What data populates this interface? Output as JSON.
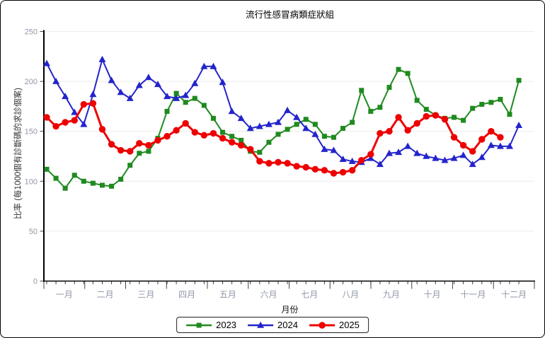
{
  "page_title": "流行性感冒病類症狀組",
  "chart_data": {
    "type": "line",
    "title": "流行性感冒病類症狀組",
    "grid": true,
    "legend_position": "bottom",
    "x_axis": {
      "label": "月份",
      "months": [
        "一月",
        "二月",
        "三月",
        "四月",
        "五月",
        "六月",
        "七月",
        "八月",
        "九月",
        "十月",
        "十一月",
        "十二月"
      ],
      "unit": "week"
    },
    "y_axis": {
      "label": "比率 (每1000個有診斷碼的求診個案)",
      "ticks": [
        0,
        50,
        100,
        150,
        200,
        250
      ],
      "range": [
        0,
        250
      ]
    },
    "colors": {
      "grid": "#ececec",
      "axis": "#000000",
      "tick": "#444444",
      "tick_label": "#9097a8"
    },
    "series": [
      {
        "name": "2023",
        "color": "#1f8a1f",
        "marker": "square",
        "values": [
          112,
          103,
          93,
          106,
          100,
          98,
          96,
          95,
          102,
          116,
          128,
          130,
          143,
          170,
          188,
          179,
          183,
          176,
          163,
          149,
          145,
          141,
          130,
          129,
          139,
          147,
          152,
          157,
          162,
          157,
          145,
          144,
          153,
          159,
          191,
          170,
          174,
          194,
          212,
          208,
          181,
          172,
          166,
          163,
          164,
          161,
          173,
          177,
          179,
          182,
          167,
          201
        ]
      },
      {
        "name": "2024",
        "color": "#2424cc",
        "marker": "triangle",
        "values": [
          218,
          200,
          185,
          169,
          157,
          187,
          222,
          201,
          189,
          183,
          196,
          204,
          197,
          185,
          183,
          186,
          198,
          215,
          215,
          199,
          170,
          163,
          153,
          155,
          157,
          159,
          171,
          164,
          153,
          147,
          132,
          131,
          122,
          120,
          119,
          123,
          117,
          128,
          129,
          135,
          128,
          125,
          123,
          121,
          123,
          126,
          117,
          124,
          136,
          135,
          135,
          156
        ]
      },
      {
        "name": "2025",
        "color": "#ee0000",
        "marker": "circle",
        "values": [
          164,
          155,
          159,
          161,
          177,
          178,
          152,
          137,
          131,
          130,
          138,
          136,
          141,
          145,
          151,
          158,
          149,
          146,
          148,
          143,
          139,
          136,
          132,
          120,
          118,
          119,
          118,
          115,
          114,
          112,
          111,
          108,
          109,
          111,
          121,
          127,
          148,
          150,
          164,
          151,
          158,
          165,
          166,
          162,
          144,
          136,
          130,
          142,
          150,
          144
        ]
      }
    ]
  }
}
